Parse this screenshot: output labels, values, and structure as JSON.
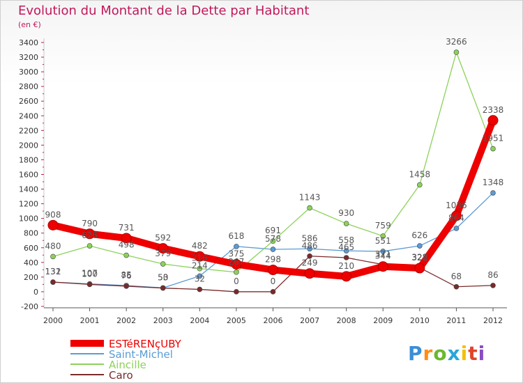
{
  "title": "Evolution du Montant de la Dette par Habitant",
  "subtitle": "(en €)",
  "logo_text": "Proxiti",
  "chart_data": {
    "type": "line",
    "x": [
      "2000",
      "2001",
      "2002",
      "2003",
      "2004",
      "2005",
      "2006",
      "2007",
      "2008",
      "2009",
      "2010",
      "2011",
      "2012"
    ],
    "ylim": [
      -200,
      3400
    ],
    "yticks": [
      -200,
      0,
      200,
      400,
      600,
      800,
      1000,
      1200,
      1400,
      1600,
      1800,
      2000,
      2200,
      2400,
      2600,
      2800,
      3000,
      3200,
      3400
    ],
    "grid": false,
    "legend_position": "bottom-left",
    "series": [
      {
        "name": "ESTéRENçUBY",
        "color": "#ee0000",
        "values": [
          908,
          790,
          731,
          592,
          482,
          375,
          298,
          249,
          210,
          344,
          322,
          1036,
          2338
        ]
      },
      {
        "name": "Saint-Michel",
        "color": "#5b9bd5",
        "values": [
          131,
          107,
          85,
          53,
          214,
          618,
          578,
          586,
          558,
          551,
          626,
          864,
          1348
        ]
      },
      {
        "name": "Aincille",
        "color": "#8cd25a",
        "values": [
          480,
          626,
          498,
          379,
          316,
          267,
          691,
          1143,
          930,
          759,
          1458,
          3266,
          1951
        ]
      },
      {
        "name": "Caro",
        "color": "#7a2a2a",
        "values": [
          132,
          100,
          76,
          50,
          32,
          0,
          0,
          486,
          465,
          371,
          328,
          68,
          86
        ]
      }
    ],
    "value_labels": [
      [
        {
          "i": 0,
          "t": "908"
        },
        {
          "i": 1,
          "t": "790"
        },
        {
          "i": 2,
          "t": "731"
        },
        {
          "i": 3,
          "t": "592"
        },
        {
          "i": 4,
          "t": "482"
        },
        {
          "i": 5,
          "t": "375"
        },
        {
          "i": 6,
          "t": "298"
        },
        {
          "i": 7,
          "t": "249"
        },
        {
          "i": 8,
          "t": "210"
        },
        {
          "i": 9,
          "t": "344"
        },
        {
          "i": 10,
          "t": "322"
        },
        {
          "i": 11,
          "t": "1036"
        },
        {
          "i": 12,
          "t": "2338"
        }
      ],
      [
        {
          "i": 0,
          "t": "131"
        },
        {
          "i": 1,
          "t": "107"
        },
        {
          "i": 2,
          "t": "85"
        },
        {
          "i": 3,
          "t": "53"
        },
        {
          "i": 4,
          "t": "214"
        },
        {
          "i": 5,
          "t": "618"
        },
        {
          "i": 6,
          "t": "578"
        },
        {
          "i": 7,
          "t": "586"
        },
        {
          "i": 8,
          "t": "558"
        },
        {
          "i": 9,
          "t": "551"
        },
        {
          "i": 10,
          "t": "626"
        },
        {
          "i": 11,
          "t": "864"
        },
        {
          "i": 12,
          "t": "1348"
        }
      ],
      [
        {
          "i": 0,
          "t": "480"
        },
        {
          "i": 1,
          "t": "626"
        },
        {
          "i": 2,
          "t": "498"
        },
        {
          "i": 3,
          "t": "379"
        },
        {
          "i": 4,
          "t": "316"
        },
        {
          "i": 5,
          "t": "267"
        },
        {
          "i": 6,
          "t": "691"
        },
        {
          "i": 7,
          "t": "1143"
        },
        {
          "i": 8,
          "t": "930"
        },
        {
          "i": 9,
          "t": "759"
        },
        {
          "i": 10,
          "t": "1458"
        },
        {
          "i": 11,
          "t": "3266"
        },
        {
          "i": 12,
          "t": "1951"
        }
      ],
      [
        {
          "i": 0,
          "t": "132"
        },
        {
          "i": 1,
          "t": "100"
        },
        {
          "i": 2,
          "t": "76"
        },
        {
          "i": 3,
          "t": "50"
        },
        {
          "i": 4,
          "t": "32"
        },
        {
          "i": 5,
          "t": "0"
        },
        {
          "i": 6,
          "t": "0"
        },
        {
          "i": 7,
          "t": "486"
        },
        {
          "i": 8,
          "t": "465"
        },
        {
          "i": 9,
          "t": "371"
        },
        {
          "i": 10,
          "t": "328"
        },
        {
          "i": 11,
          "t": "68"
        },
        {
          "i": 12,
          "t": "86"
        }
      ]
    ]
  }
}
